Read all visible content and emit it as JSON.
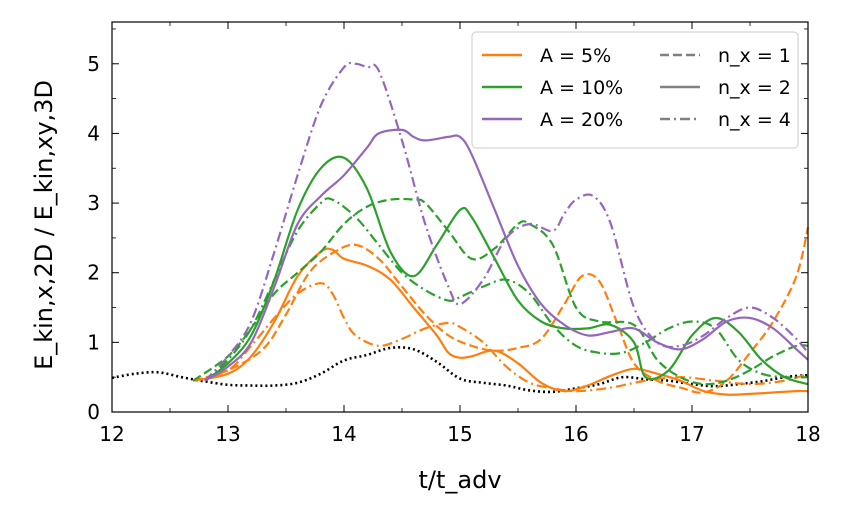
{
  "chart_data": {
    "type": "line",
    "title": "",
    "xlabel": "t/t_adv",
    "ylabel": "E_kin,x,2D / E_kin,xy,3D",
    "xlim": [
      12,
      18
    ],
    "ylim": [
      0,
      5.6
    ],
    "xticks": [
      "12",
      "13",
      "14",
      "15",
      "16",
      "17",
      "18"
    ],
    "yticks": [
      "0",
      "1",
      "2",
      "3",
      "4",
      "5"
    ],
    "grid": false,
    "legend_position": "top-right",
    "legend": {
      "amplitudes": [
        {
          "label": "A = 5%",
          "color": "#ff7f0e"
        },
        {
          "label": "A = 10%",
          "color": "#2ca02c"
        },
        {
          "label": "A = 20%",
          "color": "#9467bd"
        }
      ],
      "modes": [
        {
          "label": "n_x = 1",
          "dash": "dashed"
        },
        {
          "label": "n_x = 2",
          "dash": "solid"
        },
        {
          "label": "n_x = 4",
          "dash": "dashdot"
        }
      ]
    },
    "series": [
      {
        "name": "reference",
        "color": "#000000",
        "dash": "dotted",
        "x": [
          12.0,
          12.2,
          12.4,
          12.6,
          12.8,
          13.0,
          13.2,
          13.4,
          13.6,
          13.8,
          14.0,
          14.2,
          14.4,
          14.6,
          14.8,
          15.0,
          15.2,
          15.4,
          15.6,
          15.8,
          16.0,
          16.2,
          16.4,
          16.6,
          16.8,
          17.0,
          17.2,
          17.4,
          17.6,
          17.8,
          18.0
        ],
        "y": [
          0.49,
          0.55,
          0.57,
          0.5,
          0.44,
          0.39,
          0.38,
          0.38,
          0.42,
          0.55,
          0.74,
          0.82,
          0.92,
          0.9,
          0.72,
          0.48,
          0.42,
          0.38,
          0.31,
          0.29,
          0.34,
          0.4,
          0.5,
          0.47,
          0.45,
          0.4,
          0.37,
          0.4,
          0.44,
          0.5,
          0.53
        ]
      },
      {
        "name": "A=5%, n_x=1",
        "color": "#ff7f0e",
        "dash": "dashed",
        "x": [
          12.7,
          13.0,
          13.3,
          13.5,
          13.7,
          13.9,
          14.1,
          14.3,
          14.5,
          14.7,
          14.9,
          15.1,
          15.3,
          15.5,
          15.7,
          15.9,
          16.05,
          16.2,
          16.35,
          16.5,
          16.7,
          16.9,
          17.1,
          17.3,
          17.5,
          17.7,
          17.9,
          18.0
        ],
        "y": [
          0.45,
          0.6,
          0.9,
          1.4,
          2.0,
          2.28,
          2.4,
          2.2,
          1.8,
          1.4,
          1.1,
          0.95,
          0.88,
          0.92,
          1.05,
          1.55,
          1.95,
          1.88,
          1.3,
          0.7,
          0.45,
          0.35,
          0.28,
          0.45,
          0.85,
          1.3,
          1.95,
          2.65
        ]
      },
      {
        "name": "A=5%, n_x=2",
        "color": "#ff7f0e",
        "dash": "solid",
        "x": [
          12.7,
          13.0,
          13.2,
          13.4,
          13.6,
          13.8,
          13.9,
          14.0,
          14.2,
          14.4,
          14.6,
          14.8,
          14.9,
          15.0,
          15.1,
          15.3,
          15.5,
          15.7,
          15.9,
          16.1,
          16.3,
          16.5,
          16.7,
          16.9,
          17.1,
          17.3,
          17.5,
          17.7,
          17.9,
          18.0
        ],
        "y": [
          0.45,
          0.55,
          0.8,
          1.3,
          1.95,
          2.3,
          2.33,
          2.2,
          2.1,
          1.9,
          1.5,
          1.1,
          0.85,
          0.78,
          0.8,
          0.88,
          0.7,
          0.42,
          0.3,
          0.38,
          0.52,
          0.62,
          0.55,
          0.45,
          0.3,
          0.25,
          0.26,
          0.28,
          0.3,
          0.3
        ]
      },
      {
        "name": "A=5%, n_x=4",
        "color": "#ff7f0e",
        "dash": "dashdot",
        "x": [
          12.7,
          13.0,
          13.2,
          13.4,
          13.6,
          13.8,
          13.9,
          14.0,
          14.1,
          14.3,
          14.5,
          14.7,
          14.9,
          15.0,
          15.2,
          15.4,
          15.6,
          15.8,
          16.0,
          16.3,
          16.6,
          16.9,
          17.2,
          17.5,
          17.8,
          18.0
        ],
        "y": [
          0.45,
          0.6,
          0.95,
          1.35,
          1.7,
          1.85,
          1.7,
          1.35,
          1.1,
          0.95,
          1.05,
          1.2,
          1.28,
          1.22,
          1.0,
          0.65,
          0.42,
          0.34,
          0.3,
          0.35,
          0.45,
          0.5,
          0.45,
          0.4,
          0.45,
          0.55
        ]
      },
      {
        "name": "A=10%, n_x=1",
        "color": "#2ca02c",
        "dash": "dashed",
        "x": [
          12.7,
          13.0,
          13.2,
          13.4,
          13.6,
          13.8,
          14.0,
          14.2,
          14.4,
          14.6,
          14.7,
          14.9,
          15.1,
          15.3,
          15.5,
          15.6,
          15.8,
          16.0,
          16.2,
          16.5,
          16.7,
          16.9,
          17.1,
          17.3,
          17.5,
          17.7,
          17.9,
          18.0
        ],
        "y": [
          0.45,
          0.8,
          1.2,
          1.7,
          2.0,
          2.3,
          2.7,
          2.95,
          3.05,
          3.05,
          3.0,
          2.6,
          2.2,
          2.35,
          2.7,
          2.7,
          2.4,
          1.5,
          1.3,
          1.25,
          0.75,
          0.5,
          0.4,
          0.45,
          0.6,
          0.8,
          0.95,
          0.95
        ]
      },
      {
        "name": "A=10%, n_x=2",
        "color": "#2ca02c",
        "dash": "solid",
        "x": [
          12.8,
          13.0,
          13.2,
          13.4,
          13.6,
          13.8,
          14.0,
          14.2,
          14.4,
          14.6,
          14.8,
          15.0,
          15.1,
          15.3,
          15.5,
          15.7,
          15.9,
          16.1,
          16.3,
          16.5,
          16.6,
          16.8,
          17.0,
          17.2,
          17.4,
          17.6,
          17.8,
          18.0
        ],
        "y": [
          0.45,
          0.7,
          1.1,
          1.9,
          2.9,
          3.5,
          3.65,
          3.2,
          2.3,
          1.95,
          2.4,
          2.9,
          2.8,
          2.2,
          1.6,
          1.3,
          1.2,
          1.2,
          1.25,
          1.0,
          0.5,
          0.6,
          1.1,
          1.35,
          1.15,
          0.75,
          0.5,
          0.4
        ]
      },
      {
        "name": "A=10%, n_x=4",
        "color": "#2ca02c",
        "dash": "dashdot",
        "x": [
          12.8,
          13.0,
          13.2,
          13.4,
          13.6,
          13.8,
          13.9,
          14.1,
          14.3,
          14.5,
          14.7,
          14.9,
          15.0,
          15.2,
          15.4,
          15.6,
          15.8,
          16.0,
          16.2,
          16.4,
          16.6,
          16.8,
          17.0,
          17.2,
          17.4,
          17.6,
          17.8,
          18.0
        ],
        "y": [
          0.45,
          0.75,
          1.2,
          1.9,
          2.6,
          3.0,
          3.05,
          2.8,
          2.4,
          2.0,
          1.75,
          1.6,
          1.65,
          1.8,
          1.9,
          1.7,
          1.25,
          0.95,
          0.85,
          0.85,
          1.0,
          1.2,
          1.3,
          1.2,
          0.75,
          0.55,
          0.5,
          0.5
        ]
      },
      {
        "name": "A=20%, n_x=1",
        "color": "#9467bd",
        "dash": "dashed",
        "x": [],
        "y": []
      },
      {
        "name": "A=20%, n_x=2",
        "color": "#9467bd",
        "dash": "solid",
        "x": [
          12.8,
          13.0,
          13.2,
          13.4,
          13.6,
          13.8,
          14.0,
          14.2,
          14.3,
          14.5,
          14.6,
          14.7,
          14.9,
          15.0,
          15.1,
          15.3,
          15.5,
          15.7,
          15.9,
          16.1,
          16.3,
          16.5,
          16.7,
          16.9,
          17.1,
          17.3,
          17.5,
          17.7,
          17.9,
          18.0
        ],
        "y": [
          0.45,
          0.65,
          1.0,
          1.8,
          2.7,
          3.1,
          3.4,
          3.8,
          4.0,
          4.05,
          3.95,
          3.9,
          3.95,
          3.95,
          3.7,
          2.9,
          2.1,
          1.55,
          1.25,
          1.1,
          1.15,
          1.2,
          1.0,
          0.9,
          1.05,
          1.3,
          1.35,
          1.2,
          0.9,
          0.75
        ]
      },
      {
        "name": "A=20%, n_x=4",
        "color": "#9467bd",
        "dash": "dashdot",
        "x": [
          12.8,
          13.0,
          13.2,
          13.4,
          13.6,
          13.8,
          14.0,
          14.1,
          14.2,
          14.3,
          14.5,
          14.7,
          14.9,
          15.0,
          15.2,
          15.4,
          15.6,
          15.8,
          15.9,
          16.0,
          16.15,
          16.3,
          16.5,
          16.7,
          16.9,
          17.1,
          17.3,
          17.5,
          17.7,
          17.9,
          18.0
        ],
        "y": [
          0.45,
          0.8,
          1.3,
          2.3,
          3.4,
          4.4,
          4.95,
          5.0,
          4.95,
          4.9,
          3.9,
          2.7,
          1.8,
          1.55,
          1.9,
          2.5,
          2.7,
          2.6,
          2.85,
          3.05,
          3.1,
          2.7,
          1.5,
          1.0,
          0.95,
          1.1,
          1.35,
          1.5,
          1.35,
          1.05,
          0.85
        ]
      }
    ]
  }
}
